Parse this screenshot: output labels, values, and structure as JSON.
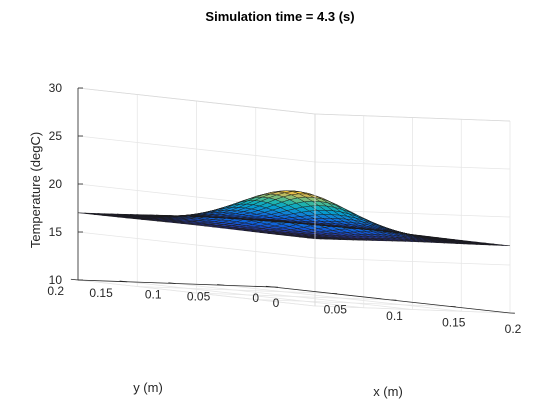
{
  "chart_data": {
    "type": "surface",
    "title": "Simulation time = 4.3 (s)",
    "xlabel": "x (m)",
    "ylabel": "y (m)",
    "zlabel": "Temperature (degC)",
    "xlim": [
      0,
      0.2
    ],
    "ylim": [
      0,
      0.2
    ],
    "zlim": [
      10,
      30
    ],
    "x_ticks": [
      "0",
      "0.05",
      "0.1",
      "0.15",
      "0.2"
    ],
    "y_ticks": [
      "0",
      "0.05",
      "0.1",
      "0.15",
      "0.2"
    ],
    "z_ticks": [
      "10",
      "15",
      "20",
      "25",
      "30"
    ],
    "grid": true,
    "colormap": "parula",
    "grid_points": 31,
    "surface": {
      "baseline_temperature": 17,
      "peak_temperature": 21,
      "peak_location": [
        0.1,
        0.1
      ],
      "spread_sigma": 0.035
    }
  }
}
